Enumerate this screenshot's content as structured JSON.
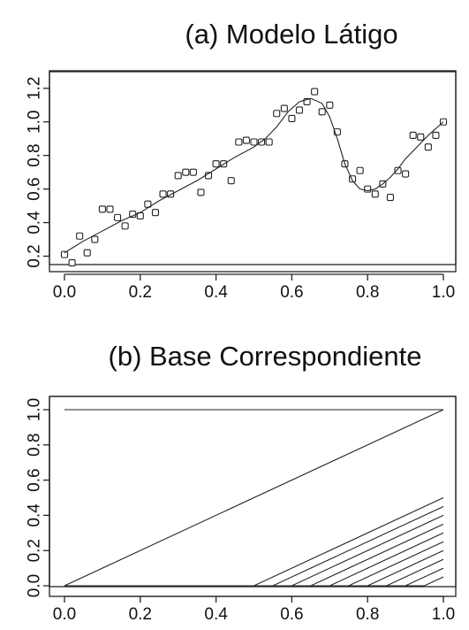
{
  "chart_data": [
    {
      "type": "scatter",
      "title": "(a) Modelo Látigo",
      "xlabel": "",
      "ylabel": "",
      "xlim": [
        0,
        1
      ],
      "ylim": [
        0.15,
        1.22
      ],
      "xticks": [
        0.0,
        0.2,
        0.4,
        0.6,
        0.8,
        1.0
      ],
      "xtick_labels": [
        "0.0",
        "0.2",
        "0.4",
        "0.6",
        "0.8",
        "1.0"
      ],
      "yticks": [
        0.2,
        0.4,
        0.6,
        0.8,
        1.0,
        1.2
      ],
      "ytick_labels": [
        "0.2",
        "0.4",
        "0.6",
        "0.8",
        "1.0",
        "1.2"
      ],
      "grid": false,
      "series": [
        {
          "kind": "points",
          "marker": "open-square",
          "x": [
            0.0,
            0.02,
            0.04,
            0.06,
            0.08,
            0.1,
            0.12,
            0.14,
            0.16,
            0.18,
            0.2,
            0.22,
            0.24,
            0.26,
            0.28,
            0.3,
            0.32,
            0.34,
            0.36,
            0.38,
            0.4,
            0.42,
            0.44,
            0.46,
            0.48,
            0.5,
            0.52,
            0.54,
            0.56,
            0.58,
            0.6,
            0.62,
            0.64,
            0.66,
            0.68,
            0.7,
            0.72,
            0.74,
            0.76,
            0.78,
            0.8,
            0.82,
            0.84,
            0.86,
            0.88,
            0.9,
            0.92,
            0.94,
            0.96,
            0.98,
            1.0
          ],
          "y": [
            0.21,
            0.16,
            0.32,
            0.22,
            0.3,
            0.48,
            0.48,
            0.43,
            0.38,
            0.45,
            0.44,
            0.51,
            0.46,
            0.57,
            0.57,
            0.68,
            0.7,
            0.7,
            0.58,
            0.68,
            0.75,
            0.75,
            0.65,
            0.88,
            0.89,
            0.88,
            0.88,
            0.88,
            1.05,
            1.08,
            1.02,
            1.07,
            1.12,
            1.18,
            1.06,
            1.1,
            0.94,
            0.75,
            0.66,
            0.71,
            0.6,
            0.57,
            0.63,
            0.55,
            0.71,
            0.69,
            0.92,
            0.91,
            0.85,
            0.92,
            1.0
          ]
        },
        {
          "kind": "line",
          "x": [
            0.0,
            0.05,
            0.1,
            0.15,
            0.2,
            0.25,
            0.3,
            0.35,
            0.4,
            0.45,
            0.5,
            0.53,
            0.56,
            0.59,
            0.62,
            0.65,
            0.68,
            0.7,
            0.72,
            0.74,
            0.76,
            0.78,
            0.8,
            0.82,
            0.84,
            0.86,
            0.88,
            0.9,
            0.93,
            0.96,
            1.0
          ],
          "y": [
            0.22,
            0.29,
            0.35,
            0.41,
            0.46,
            0.53,
            0.59,
            0.65,
            0.72,
            0.79,
            0.85,
            0.9,
            0.97,
            1.06,
            1.12,
            1.14,
            1.11,
            1.03,
            0.9,
            0.75,
            0.65,
            0.6,
            0.59,
            0.6,
            0.63,
            0.67,
            0.72,
            0.78,
            0.85,
            0.92,
            1.0
          ]
        }
      ]
    },
    {
      "type": "line",
      "title": "(b) Base Correspondiente",
      "xlabel": "",
      "ylabel": "",
      "xlim": [
        0,
        1
      ],
      "ylim": [
        0,
        1
      ],
      "xticks": [
        0.0,
        0.2,
        0.4,
        0.6,
        0.8,
        1.0
      ],
      "xtick_labels": [
        "0.0",
        "0.2",
        "0.4",
        "0.6",
        "0.8",
        "1.0"
      ],
      "yticks": [
        0.0,
        0.2,
        0.4,
        0.6,
        0.8,
        1.0
      ],
      "ytick_labels": [
        "0.0",
        "0.2",
        "0.4",
        "0.6",
        "0.8",
        "1.0"
      ],
      "grid": false,
      "series": [
        {
          "x": [
            0,
            1
          ],
          "y": [
            1,
            1
          ]
        },
        {
          "x": [
            0,
            1
          ],
          "y": [
            0,
            1
          ]
        },
        {
          "x": [
            0,
            0.5,
            1
          ],
          "y": [
            0,
            0,
            0.5
          ]
        },
        {
          "x": [
            0,
            0.55,
            1
          ],
          "y": [
            0,
            0,
            0.45
          ]
        },
        {
          "x": [
            0,
            0.6,
            1
          ],
          "y": [
            0,
            0,
            0.4
          ]
        },
        {
          "x": [
            0,
            0.65,
            1
          ],
          "y": [
            0,
            0,
            0.35
          ]
        },
        {
          "x": [
            0,
            0.7,
            1
          ],
          "y": [
            0,
            0,
            0.3
          ]
        },
        {
          "x": [
            0,
            0.75,
            1
          ],
          "y": [
            0,
            0,
            0.25
          ]
        },
        {
          "x": [
            0,
            0.8,
            1
          ],
          "y": [
            0,
            0,
            0.2
          ]
        },
        {
          "x": [
            0,
            0.85,
            1
          ],
          "y": [
            0,
            0,
            0.15
          ]
        },
        {
          "x": [
            0,
            0.9,
            1
          ],
          "y": [
            0,
            0,
            0.1
          ]
        },
        {
          "x": [
            0,
            0.95,
            1
          ],
          "y": [
            0,
            0,
            0.05
          ]
        }
      ]
    }
  ]
}
